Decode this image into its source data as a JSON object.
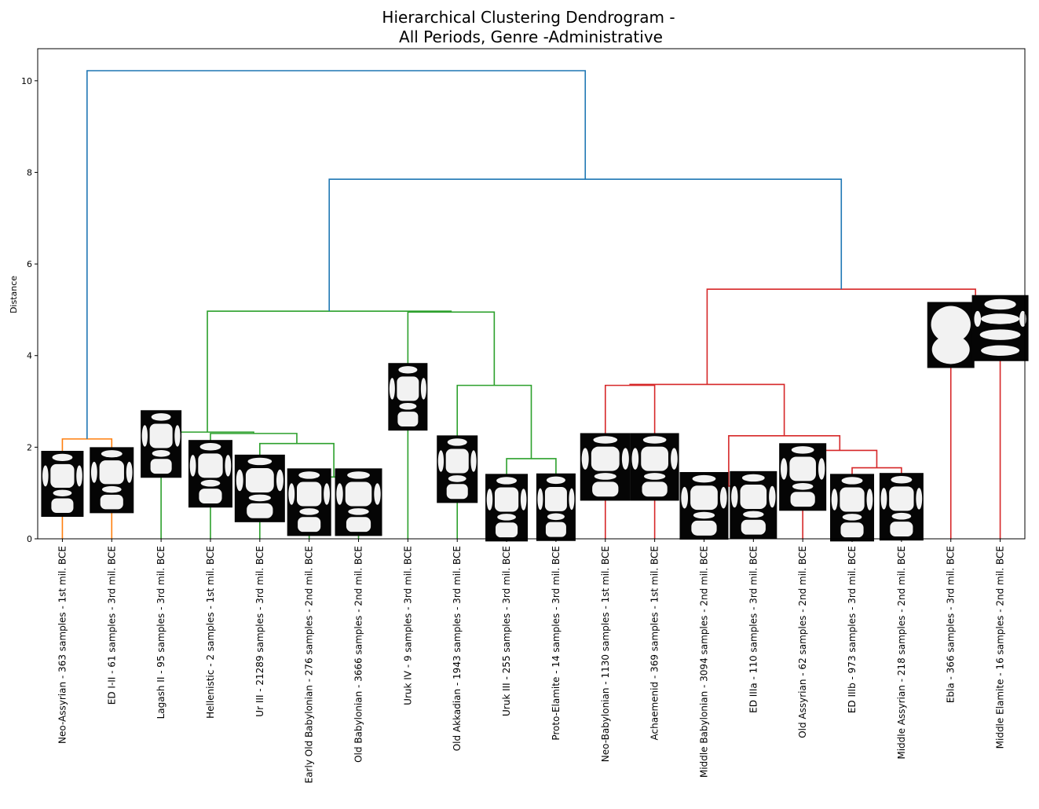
{
  "chart_data": {
    "type": "dendrogram",
    "title": [
      "Hierarchical Clustering Dendrogram -",
      "All Periods, Genre -Administrative"
    ],
    "xlabel": "",
    "ylabel": "Distance",
    "ylim": [
      0,
      10.7
    ],
    "yticks": [
      0,
      2,
      4,
      6,
      8,
      10
    ],
    "grid": false,
    "colors": {
      "orange": "#ff7f0e",
      "green": "#2ca02c",
      "red": "#d62728",
      "blue": "#1f77b4"
    },
    "leaves": [
      "Neo-Assyrian - 363 samples - 1st mil. BCE",
      "ED I-II - 61 samples - 3rd mil. BCE",
      "Lagash II - 95 samples - 3rd mil. BCE",
      "Hellenistic - 2 samples - 1st mil. BCE",
      "Ur III - 21289 samples - 3rd mil. BCE",
      "Early Old Babylonian - 276 samples - 2nd mil. BCE",
      "Old Babylonian - 3666 samples - 2nd mil. BCE",
      "Uruk IV - 9 samples - 3rd mil. BCE",
      "Old Akkadian - 1943 samples - 3rd mil. BCE",
      "Uruk III - 255 samples - 3rd mil. BCE",
      "Proto-Elamite - 14 samples - 3rd mil. BCE",
      "Neo-Babylonian - 1130 samples - 1st mil. BCE",
      "Achaemenid - 369 samples - 1st mil. BCE",
      "Middle Babylonian - 3094 samples - 2nd mil. BCE",
      "ED IIIa - 110 samples - 3rd mil. BCE",
      "Old Assyrian - 62 samples - 2nd mil. BCE",
      "ED IIIb - 973 samples - 3rd mil. BCE",
      "Middle Assyrian - 218 samples - 2nd mil. BCE",
      "Ebla - 366 samples - 3rd mil. BCE",
      "Middle Elamite - 16 samples - 2nd mil. BCE"
    ],
    "merges": [
      {
        "left": 0,
        "right": 1,
        "height": 2.18,
        "color": "orange"
      },
      {
        "left": 5,
        "right": 6,
        "height": 1.35,
        "color": "green"
      },
      {
        "left": 4,
        "right": 21,
        "height": 2.08,
        "color": "green"
      },
      {
        "left": 3,
        "right": 22,
        "height": 2.3,
        "color": "green"
      },
      {
        "left": 2,
        "right": 23,
        "height": 2.33,
        "color": "green"
      },
      {
        "left": 9,
        "right": 10,
        "height": 1.75,
        "color": "green"
      },
      {
        "left": 8,
        "right": 25,
        "height": 3.35,
        "color": "green"
      },
      {
        "left": 7,
        "right": 26,
        "height": 4.95,
        "color": "green"
      },
      {
        "left": 24,
        "right": 27,
        "height": 4.97,
        "color": "green"
      },
      {
        "left": 11,
        "right": 12,
        "height": 3.35,
        "color": "red"
      },
      {
        "left": 13,
        "right": 14,
        "height": 1.15,
        "color": "red"
      },
      {
        "left": 16,
        "right": 17,
        "height": 1.55,
        "color": "red"
      },
      {
        "left": 15,
        "right": 31,
        "height": 1.93,
        "color": "red"
      },
      {
        "left": 30,
        "right": 32,
        "height": 2.25,
        "color": "red"
      },
      {
        "left": 29,
        "right": 33,
        "height": 3.37,
        "color": "red"
      },
      {
        "left": 18,
        "right": 19,
        "height": 4.98,
        "color": "red"
      },
      {
        "left": 34,
        "right": 35,
        "height": 5.45,
        "color": "red"
      },
      {
        "left": 28,
        "right": 36,
        "height": 7.85,
        "color": "blue"
      },
      {
        "left": 20,
        "right": 37,
        "height": 10.22,
        "color": "blue"
      }
    ]
  }
}
